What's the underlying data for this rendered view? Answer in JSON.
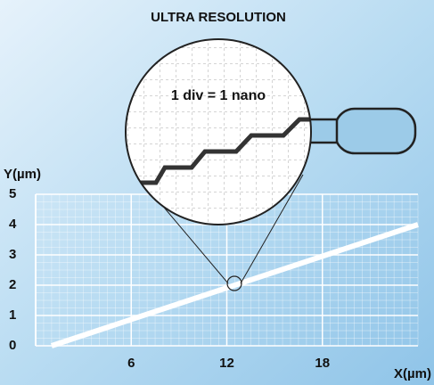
{
  "chart_data": {
    "type": "line",
    "title": "ULTRA RESOLUTION",
    "annotation": "1 div = 1 nano",
    "xlabel": "X(µm)",
    "ylabel": "Y(µm)",
    "x": [
      1,
      24
    ],
    "values": [
      0,
      4
    ],
    "color": "#ffffff",
    "xlim": [
      0,
      24
    ],
    "ylim": [
      0,
      5
    ],
    "xticks": [
      6,
      12,
      18
    ],
    "yticks": [
      0,
      1,
      2,
      3,
      4,
      5
    ],
    "grid": true
  }
}
